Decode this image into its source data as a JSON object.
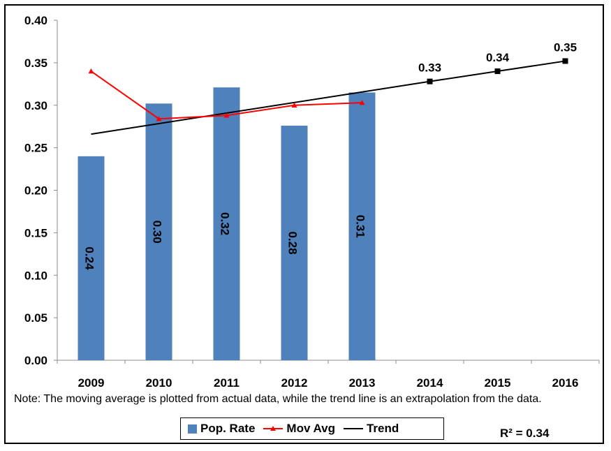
{
  "chart_data": {
    "type": "bar",
    "categories": [
      "2009",
      "2010",
      "2011",
      "2012",
      "2013",
      "2014",
      "2015",
      "2016"
    ],
    "ylim": [
      0,
      0.4
    ],
    "yticks": [
      "0.00",
      "0.05",
      "0.10",
      "0.15",
      "0.20",
      "0.25",
      "0.30",
      "0.35",
      "0.40"
    ],
    "grid": false,
    "series": [
      {
        "name": "Pop. Rate",
        "type": "bar",
        "color": "#4f81bd",
        "values": [
          0.24,
          0.302,
          0.321,
          0.276,
          0.315,
          null,
          null,
          null
        ],
        "labels": [
          "0.24",
          "0.30",
          "0.32",
          "0.28",
          "0.31",
          "",
          "",
          ""
        ]
      },
      {
        "name": "Mov Avg",
        "type": "line",
        "color": "#ff0000",
        "marker": "triangle",
        "values": [
          0.34,
          0.284,
          0.288,
          0.3,
          0.303,
          null,
          null,
          null
        ]
      },
      {
        "name": "Trend",
        "type": "line",
        "color": "#000000",
        "values": [
          0.266,
          null,
          null,
          null,
          null,
          0.328,
          0.34,
          0.352
        ],
        "markers_on": [
          "2014",
          "2015",
          "2016"
        ],
        "labels": [
          "",
          "",
          "",
          "",
          "",
          "0.33",
          "0.34",
          "0.35"
        ]
      }
    ],
    "legend_position": "bottom",
    "note": "Note: The moving average is plotted from actual data, while the trend line is an extrapolation  from the data.",
    "r_squared": "R² = 0.34"
  }
}
